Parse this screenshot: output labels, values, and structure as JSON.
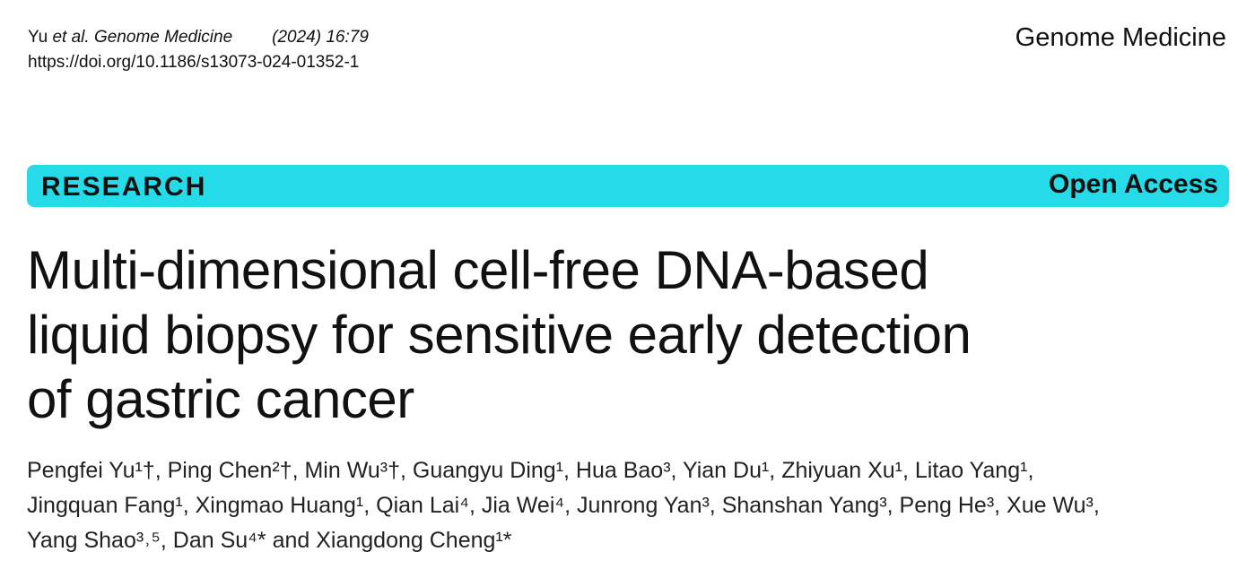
{
  "header": {
    "citation_authors": "Yu ",
    "citation_etal": "et al.",
    "citation_journal": " Genome Medicine",
    "citation_year": "(2024) 16:79",
    "doi": "https://doi.org/10.1186/s13073-024-01352-1",
    "journal_name": "Genome Medicine"
  },
  "banner": {
    "type": "RESEARCH",
    "access": "Open Access",
    "color": "#24dbe7"
  },
  "article": {
    "title_lines": [
      "Multi-dimensional cell-free DNA-based",
      "liquid biopsy for sensitive early detection",
      "of gastric cancer"
    ],
    "author_lines": [
      "Pengfei Yu¹†, Ping Chen²†, Min Wu³†, Guangyu Ding¹, Hua Bao³, Yian Du¹, Zhiyuan Xu¹, Litao Yang¹,",
      "Jingquan Fang¹, Xingmao Huang¹, Qian Lai⁴, Jia Wei⁴, Junrong Yan³, Shanshan Yang³, Peng He³, Xue Wu³,",
      "Yang Shao³˒⁵, Dan Su⁴* and Xiangdong Cheng¹*"
    ]
  }
}
